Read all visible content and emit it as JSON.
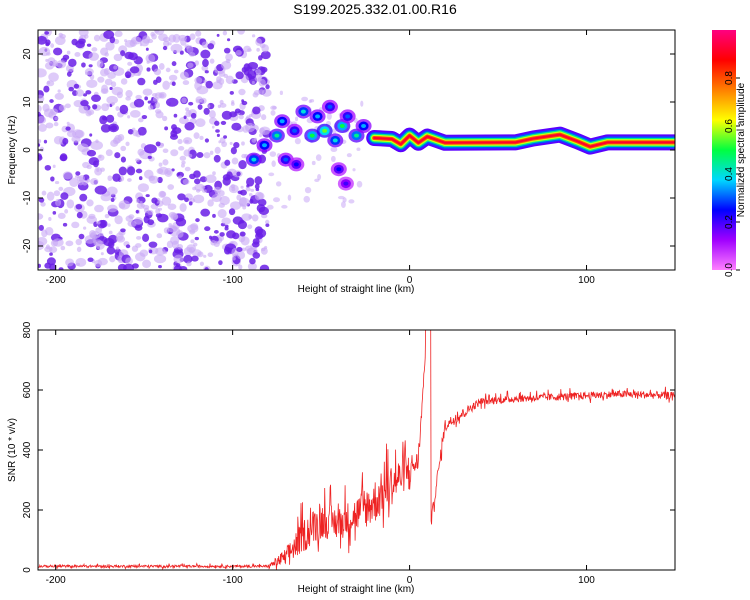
{
  "title": "S199.2025.332.01.00.R16",
  "colors": {
    "snr_line": "#ee2222",
    "ridge_core": "#ff2a00",
    "scatter_purple": "#6a1ee6",
    "scatter_light": "#c8a8f5"
  },
  "chart_data": [
    {
      "type": "heatmap",
      "name": "spectrogram",
      "xlabel": "Height of straight line (km)",
      "ylabel": "Frequency (Hz)",
      "xlim": [
        -210,
        150
      ],
      "ylim": [
        -25,
        25
      ],
      "xticks": [
        -200,
        -100,
        0,
        100
      ],
      "xtick_labels": [
        "-200",
        "-100",
        "0",
        "100"
      ],
      "yticks": [
        -20,
        -10,
        0,
        10,
        20
      ],
      "ytick_labels": [
        "-20",
        "-10",
        "0",
        "10",
        "20"
      ],
      "colorbar": {
        "label": "Normalized spectral amplitude",
        "range": [
          0,
          1
        ],
        "ticks": [
          0.0,
          0.2,
          0.4,
          0.6,
          0.8
        ],
        "tick_labels": [
          "0.0",
          "0.2",
          "0.4",
          "0.6",
          "0.8"
        ],
        "colors": [
          "#ff80ff",
          "#a000ff",
          "#0000ff",
          "#00d8ff",
          "#00ff40",
          "#ffff00",
          "#ff8000",
          "#ff0000",
          "#ff0080"
        ]
      },
      "noise_region_x": [
        -210,
        -80
      ],
      "ridge_profile": [
        {
          "x": -20,
          "y": 2.5
        },
        {
          "x": -10,
          "y": 2.3
        },
        {
          "x": -5,
          "y": 1.2
        },
        {
          "x": 0,
          "y": 3.0
        },
        {
          "x": 5,
          "y": 1.5
        },
        {
          "x": 10,
          "y": 2.8
        },
        {
          "x": 20,
          "y": 1.5
        },
        {
          "x": 60,
          "y": 1.6
        },
        {
          "x": 70,
          "y": 2.4
        },
        {
          "x": 85,
          "y": 3.2
        },
        {
          "x": 95,
          "y": 1.8
        },
        {
          "x": 102,
          "y": 0.7
        },
        {
          "x": 112,
          "y": 1.6
        },
        {
          "x": 150,
          "y": 1.6
        }
      ],
      "blobs": [
        {
          "x": -75,
          "y": 3,
          "v": 0.45
        },
        {
          "x": -72,
          "y": 6,
          "v": 0.35
        },
        {
          "x": -65,
          "y": 4,
          "v": 0.3
        },
        {
          "x": -60,
          "y": 8,
          "v": 0.4
        },
        {
          "x": -55,
          "y": 3,
          "v": 0.5
        },
        {
          "x": -52,
          "y": 7,
          "v": 0.35
        },
        {
          "x": -48,
          "y": 4,
          "v": 0.55
        },
        {
          "x": -45,
          "y": 9,
          "v": 0.3
        },
        {
          "x": -42,
          "y": 2,
          "v": 0.4
        },
        {
          "x": -38,
          "y": 5,
          "v": 0.5
        },
        {
          "x": -35,
          "y": 7,
          "v": 0.3
        },
        {
          "x": -30,
          "y": 3,
          "v": 0.45
        },
        {
          "x": -26,
          "y": 5,
          "v": 0.35
        },
        {
          "x": -88,
          "y": -2,
          "v": 0.4
        },
        {
          "x": -82,
          "y": 1,
          "v": 0.35
        },
        {
          "x": -70,
          "y": -2,
          "v": 0.3
        },
        {
          "x": -64,
          "y": -3,
          "v": 0.25
        },
        {
          "x": -40,
          "y": -4,
          "v": 0.25
        },
        {
          "x": -36,
          "y": -7,
          "v": 0.2
        }
      ]
    },
    {
      "type": "line",
      "name": "snr",
      "xlabel": "Height of straight line (km)",
      "ylabel": "SNR (10 * v/v)",
      "xlim": [
        -210,
        150
      ],
      "ylim": [
        0,
        800
      ],
      "xticks": [
        -200,
        -100,
        0,
        100
      ],
      "xtick_labels": [
        "-200",
        "-100",
        "0",
        "100"
      ],
      "yticks": [
        0,
        200,
        400,
        600,
        800
      ],
      "ytick_labels": [
        "0",
        "200",
        "400",
        "600",
        "800"
      ],
      "x": [
        -210,
        -150,
        -100,
        -80,
        -70,
        -60,
        -50,
        -40,
        -30,
        -20,
        -10,
        0,
        5,
        10,
        12,
        20,
        40,
        60,
        80,
        100,
        120,
        150
      ],
      "y": [
        12,
        12,
        12,
        12,
        40,
        110,
        160,
        150,
        180,
        220,
        280,
        330,
        360,
        820,
        150,
        480,
        560,
        570,
        575,
        580,
        585,
        580
      ],
      "noise_amp": [
        8,
        8,
        8,
        8,
        60,
        110,
        120,
        110,
        120,
        150,
        140,
        110,
        60,
        0,
        40,
        40,
        25,
        25,
        25,
        25,
        25,
        25
      ]
    }
  ]
}
